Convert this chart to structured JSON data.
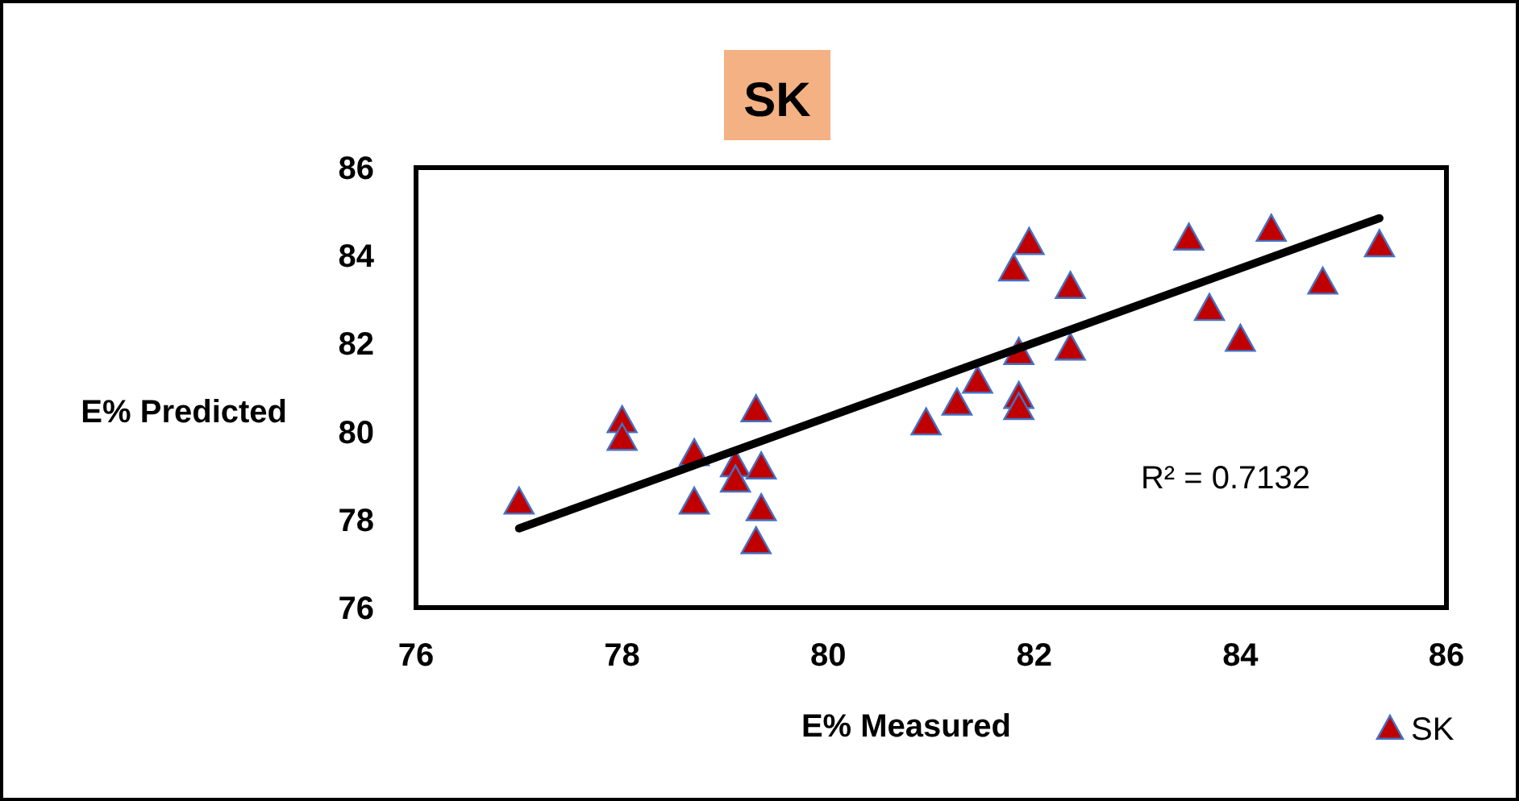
{
  "chart_data": {
    "type": "scatter",
    "title": "SK",
    "xlabel": "E%  Measured",
    "ylabel": "E% Predicted",
    "xlim": [
      76,
      86
    ],
    "ylim": [
      76,
      86
    ],
    "xticks": [
      76,
      78,
      80,
      82,
      84,
      86
    ],
    "yticks": [
      76,
      78,
      80,
      82,
      84,
      86
    ],
    "grid": false,
    "legend": "bottom right",
    "annotations": [
      "R² = 0.7132"
    ],
    "series": [
      {
        "name": "SK",
        "marker": "triangle",
        "color": "#c00000",
        "x": [
          77.0,
          78.0,
          78.0,
          78.7,
          78.7,
          79.1,
          79.1,
          79.3,
          79.35,
          79.35,
          79.3,
          80.95,
          81.25,
          81.45,
          81.85,
          81.85,
          81.85,
          81.8,
          81.95,
          82.35,
          82.35,
          83.5,
          83.7,
          84.0,
          84.3,
          84.8,
          85.35
        ],
        "values": [
          78.4,
          80.25,
          79.85,
          79.5,
          78.4,
          79.25,
          78.9,
          80.5,
          79.2,
          78.25,
          77.5,
          80.2,
          80.65,
          81.15,
          81.8,
          80.8,
          80.55,
          83.7,
          84.3,
          83.3,
          81.9,
          84.4,
          82.8,
          82.1,
          84.6,
          83.4,
          84.25
        ]
      },
      {
        "type": "line",
        "marker": "none",
        "color": "#000000",
        "x": [
          77.0,
          85.35
        ],
        "values": [
          77.8,
          84.85
        ]
      }
    ]
  }
}
